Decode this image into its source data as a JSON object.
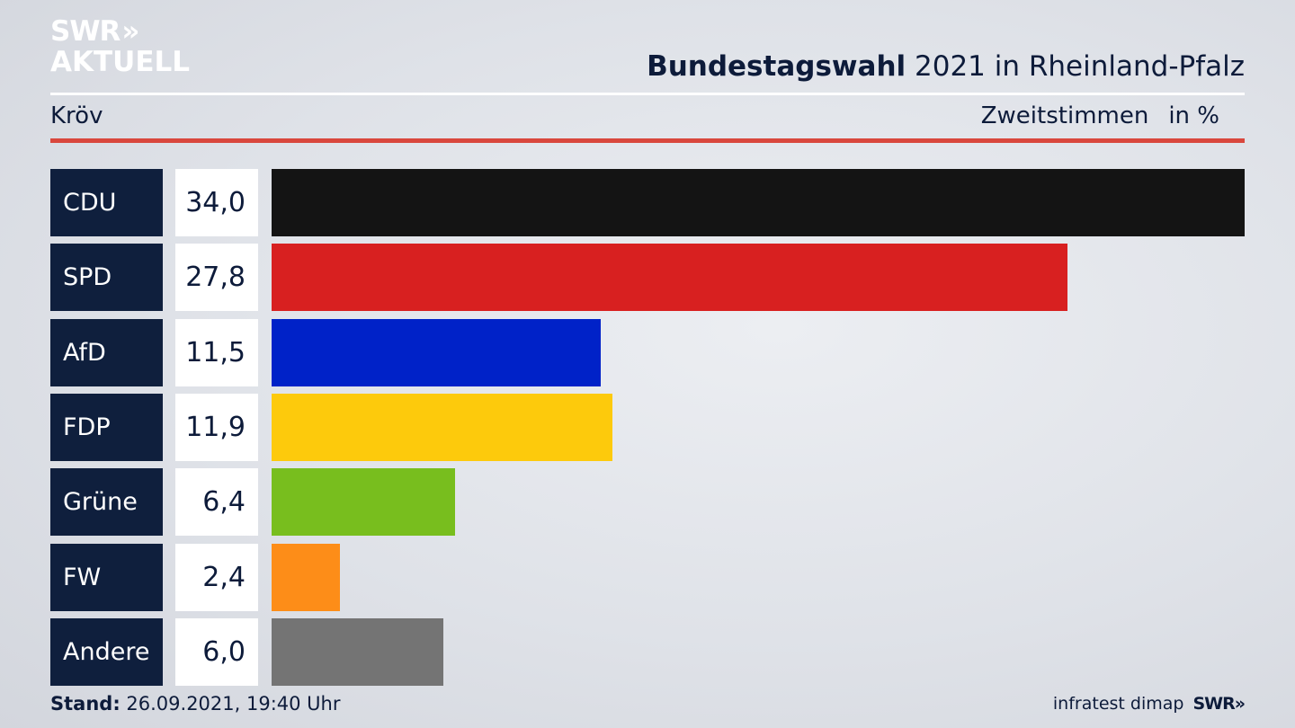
{
  "logo": {
    "line1": "SWR",
    "chevrons": "»",
    "line2": "AKTUELL"
  },
  "header": {
    "title_bold": "Bundestagswahl",
    "title_rest": " 2021 in Rheinland-Pfalz"
  },
  "subheader": {
    "location": "Kröv",
    "metric": "Zweitstimmen",
    "unit": "in %"
  },
  "chart_data": {
    "type": "bar",
    "orientation": "horizontal",
    "categories": [
      "CDU",
      "SPD",
      "AfD",
      "FDP",
      "Grüne",
      "FW",
      "Andere"
    ],
    "values": [
      34.0,
      27.8,
      11.5,
      11.9,
      6.4,
      2.4,
      6.0
    ],
    "value_labels": [
      "34,0",
      "27,8",
      "11,5",
      "11,9",
      "6,4",
      "2,4",
      "6,0"
    ],
    "colors": [
      "#141414",
      "#d82020",
      "#0022c8",
      "#fdca0c",
      "#78be1e",
      "#fd8d18",
      "#747474"
    ],
    "title": "Bundestagswahl 2021 in Rheinland-Pfalz",
    "xlim": [
      0,
      34.0
    ],
    "grid": false
  },
  "footer": {
    "stand_label": "Stand:",
    "stand_value": " 26.09.2021, 19:40 Uhr",
    "source": "infratest dimap",
    "brand": "SWR»"
  }
}
